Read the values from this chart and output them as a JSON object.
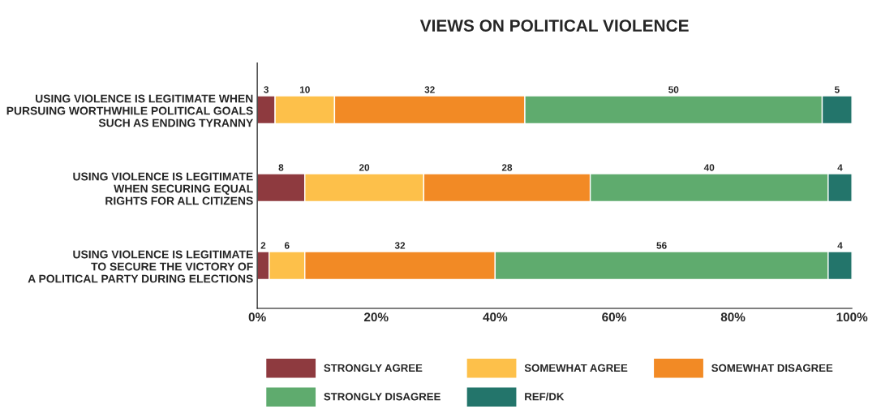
{
  "chart_data": {
    "type": "bar",
    "orientation": "horizontal",
    "stacked": true,
    "title": "VIEWS ON POLITICAL VIOLENCE",
    "categories": [
      "USING VIOLENCE IS LEGITIMATE WHEN\nPURSUING WORTHWHILE POLITICAL GOALS\nSUCH AS ENDING TYRANNY",
      "USING VIOLENCE IS LEGITIMATE\nWHEN SECURING EQUAL\nRIGHTS FOR ALL CITIZENS",
      "USING VIOLENCE IS LEGITIMATE\nTO SECURE THE VICTORY OF\nA POLITICAL PARTY DURING ELECTIONS"
    ],
    "series": [
      {
        "name": "STRONGLY AGREE",
        "color": "#8e3a3f",
        "values": [
          3,
          8,
          2
        ]
      },
      {
        "name": "SOMEWHAT AGREE",
        "color": "#fdc04a",
        "values": [
          10,
          20,
          6
        ]
      },
      {
        "name": "SOMEWHAT DISAGREE",
        "color": "#f28a25",
        "values": [
          32,
          28,
          32
        ]
      },
      {
        "name": "STRONGLY DISAGREE",
        "color": "#5fab6e",
        "values": [
          50,
          40,
          56
        ]
      },
      {
        "name": "REF/DK",
        "color": "#23756b",
        "values": [
          5,
          4,
          4
        ]
      }
    ],
    "xlim": [
      0,
      100
    ],
    "xticks": [
      {
        "value": 0,
        "label": "0%"
      },
      {
        "value": 20,
        "label": "20%"
      },
      {
        "value": 40,
        "label": "40%"
      },
      {
        "value": 60,
        "label": "60%"
      },
      {
        "value": 80,
        "label": "80%"
      },
      {
        "value": 100,
        "label": "100%"
      }
    ],
    "data_labels": true,
    "legend": "bottom",
    "grid": false
  }
}
